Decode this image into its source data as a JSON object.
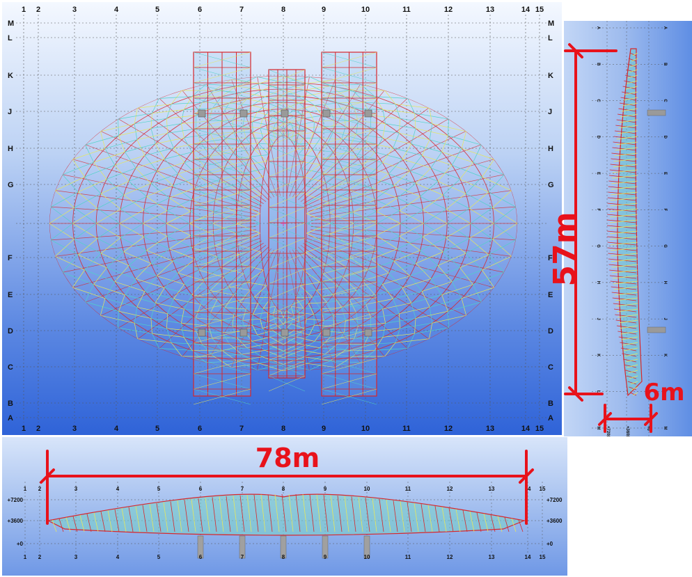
{
  "plan": {
    "columns": [
      "1",
      "2",
      "3",
      "4",
      "5",
      "6",
      "7",
      "8",
      "9",
      "10",
      "11",
      "12",
      "13",
      "14",
      "15"
    ],
    "rows": [
      "M",
      "L",
      "K",
      "J",
      "H",
      "G",
      "F",
      "E",
      "D",
      "C",
      "B",
      "A"
    ]
  },
  "side": {
    "rows": [
      "A",
      "B",
      "C",
      "D",
      "E",
      "F",
      "G",
      "H",
      "J",
      "K",
      "L",
      "M"
    ],
    "levels": [
      "+7200",
      "+3600",
      "+0"
    ],
    "dimension": "57m",
    "depth_dimension": "6m"
  },
  "front": {
    "columns": [
      "1",
      "2",
      "3",
      "4",
      "5",
      "6",
      "7",
      "8",
      "9",
      "10",
      "11",
      "12",
      "13",
      "14",
      "15"
    ],
    "levels": [
      "+7200",
      "+3600",
      "+0"
    ],
    "dimension": "78m"
  },
  "colors": {
    "member_red": "#d8262b",
    "member_yellow": "#e8e85a",
    "member_cyan": "#4fd3c8",
    "dimension": "#e8121b"
  }
}
